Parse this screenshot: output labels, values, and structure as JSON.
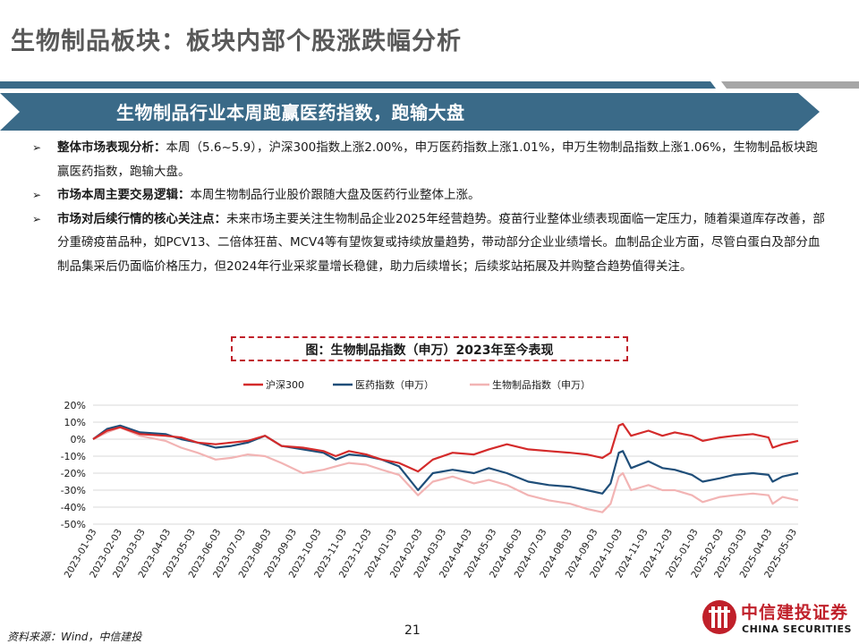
{
  "page": {
    "title": "生物制品板块：板块内部个股涨跌幅分析",
    "banner": "生物制品行业本周跑赢医药指数，跑输大盘",
    "bullets": [
      {
        "lead": "整体市场表现分析：",
        "text": "本周（5.6~5.9），沪深300指数上涨2.00%，申万医药指数上涨1.01%，申万生物制品指数上涨1.06%，生物制品板块跑赢医药指数，跑输大盘。"
      },
      {
        "lead": "市场本周主要交易逻辑：",
        "text": "本周生物制品行业股价跟随大盘及医药行业整体上涨。"
      },
      {
        "lead": "市场对后续行情的核心关注点：",
        "text": "未来市场主要关注生物制品企业2025年经营趋势。疫苗行业整体业绩表现面临一定压力，随着渠道库存改善，部分重磅疫苗品种，如PCV13、二倍体狂苗、MCV4等有望恢复或持续放量趋势，带动部分企业业绩增长。血制品企业方面，尽管白蛋白及部分血制品集采后仍面临价格压力，但2024年行业采浆量增长稳健，助力后续增长；后续浆站拓展及并购整合趋势值得关注。"
      }
    ],
    "source": "资料来源：Wind，中信建投",
    "page_number": "21",
    "logo_cn": "中信建投证券",
    "logo_en": "CHINA SECURITIES",
    "accent": "#c0202a",
    "banner_color": "#3a6a88"
  },
  "chart_data": {
    "type": "line",
    "title": "图：生物制品指数（申万）2023年至今表现",
    "legend_position": "top",
    "grid": true,
    "y_tick_labels": [
      "20%",
      "10%",
      "0%",
      "-10%",
      "-20%",
      "-30%",
      "-40%",
      "-50%"
    ],
    "ylim": [
      -50,
      20
    ],
    "x_tick_labels": [
      "2023-01-03",
      "2023-02-03",
      "2023-03-03",
      "2023-04-03",
      "2023-05-03",
      "2023-06-03",
      "2023-07-03",
      "2023-08-03",
      "2023-09-03",
      "2023-10-03",
      "2023-11-03",
      "2023-12-03",
      "2024-01-03",
      "2024-02-03",
      "2024-03-03",
      "2024-04-03",
      "2024-05-03",
      "2024-06-03",
      "2024-07-03",
      "2024-08-03",
      "2024-09-03",
      "2024-10-03",
      "2024-11-03",
      "2024-12-03",
      "2025-01-03",
      "2025-02-03",
      "2025-03-03",
      "2025-04-03",
      "2025-05-03"
    ],
    "x_range": [
      "2023-01-03",
      "2025-05-09"
    ],
    "series": [
      {
        "name": "沪深300",
        "color": "#d42b2b",
        "points": [
          [
            "2023-01-03",
            0
          ],
          [
            "2023-01-20",
            5
          ],
          [
            "2023-02-05",
            7
          ],
          [
            "2023-03-01",
            3
          ],
          [
            "2023-04-01",
            2
          ],
          [
            "2023-04-20",
            1
          ],
          [
            "2023-05-10",
            -2
          ],
          [
            "2023-06-01",
            -3
          ],
          [
            "2023-06-20",
            -2
          ],
          [
            "2023-07-10",
            -1
          ],
          [
            "2023-07-31",
            2
          ],
          [
            "2023-08-20",
            -4
          ],
          [
            "2023-09-15",
            -5
          ],
          [
            "2023-10-10",
            -7
          ],
          [
            "2023-10-25",
            -10
          ],
          [
            "2023-11-10",
            -7
          ],
          [
            "2023-12-01",
            -9
          ],
          [
            "2023-12-20",
            -12
          ],
          [
            "2024-01-10",
            -14
          ],
          [
            "2024-02-02",
            -19
          ],
          [
            "2024-02-20",
            -12
          ],
          [
            "2024-03-15",
            -8
          ],
          [
            "2024-04-10",
            -9
          ],
          [
            "2024-04-28",
            -6
          ],
          [
            "2024-05-20",
            -3
          ],
          [
            "2024-06-15",
            -6
          ],
          [
            "2024-07-10",
            -7
          ],
          [
            "2024-08-05",
            -8
          ],
          [
            "2024-08-25",
            -9
          ],
          [
            "2024-09-13",
            -11
          ],
          [
            "2024-09-23",
            -8
          ],
          [
            "2024-10-03",
            8
          ],
          [
            "2024-10-08",
            9
          ],
          [
            "2024-10-18",
            2
          ],
          [
            "2024-11-08",
            5
          ],
          [
            "2024-11-25",
            2
          ],
          [
            "2024-12-10",
            4
          ],
          [
            "2024-12-31",
            2
          ],
          [
            "2025-01-13",
            -1
          ],
          [
            "2025-02-03",
            1
          ],
          [
            "2025-02-20",
            2
          ],
          [
            "2025-03-15",
            3
          ],
          [
            "2025-04-03",
            1
          ],
          [
            "2025-04-08",
            -5
          ],
          [
            "2025-04-20",
            -3
          ],
          [
            "2025-05-09",
            -1
          ]
        ]
      },
      {
        "name": "医药指数（申万）",
        "color": "#1f4e79",
        "points": [
          [
            "2023-01-03",
            0
          ],
          [
            "2023-01-20",
            6
          ],
          [
            "2023-02-05",
            8
          ],
          [
            "2023-03-01",
            4
          ],
          [
            "2023-04-01",
            3
          ],
          [
            "2023-04-20",
            0
          ],
          [
            "2023-05-10",
            -2
          ],
          [
            "2023-06-01",
            -5
          ],
          [
            "2023-06-20",
            -4
          ],
          [
            "2023-07-10",
            -2
          ],
          [
            "2023-07-31",
            2
          ],
          [
            "2023-08-20",
            -4
          ],
          [
            "2023-09-15",
            -6
          ],
          [
            "2023-10-10",
            -8
          ],
          [
            "2023-10-25",
            -12
          ],
          [
            "2023-11-10",
            -9
          ],
          [
            "2023-12-01",
            -10
          ],
          [
            "2023-12-20",
            -12
          ],
          [
            "2024-01-10",
            -16
          ],
          [
            "2024-02-02",
            -30
          ],
          [
            "2024-02-20",
            -20
          ],
          [
            "2024-03-15",
            -18
          ],
          [
            "2024-04-10",
            -20
          ],
          [
            "2024-04-28",
            -17
          ],
          [
            "2024-05-20",
            -20
          ],
          [
            "2024-06-15",
            -25
          ],
          [
            "2024-07-10",
            -27
          ],
          [
            "2024-08-05",
            -28
          ],
          [
            "2024-08-25",
            -30
          ],
          [
            "2024-09-13",
            -32
          ],
          [
            "2024-09-23",
            -26
          ],
          [
            "2024-10-03",
            -8
          ],
          [
            "2024-10-08",
            -7
          ],
          [
            "2024-10-18",
            -17
          ],
          [
            "2024-11-08",
            -13
          ],
          [
            "2024-11-25",
            -17
          ],
          [
            "2024-12-10",
            -18
          ],
          [
            "2024-12-31",
            -21
          ],
          [
            "2025-01-13",
            -25
          ],
          [
            "2025-02-03",
            -23
          ],
          [
            "2025-02-20",
            -21
          ],
          [
            "2025-03-15",
            -20
          ],
          [
            "2025-04-03",
            -21
          ],
          [
            "2025-04-08",
            -25
          ],
          [
            "2025-04-20",
            -22
          ],
          [
            "2025-05-09",
            -20
          ]
        ]
      },
      {
        "name": "生物制品指数（申万）",
        "color": "#f2b4b4",
        "points": [
          [
            "2023-01-03",
            0
          ],
          [
            "2023-01-20",
            4
          ],
          [
            "2023-02-05",
            7
          ],
          [
            "2023-03-01",
            2
          ],
          [
            "2023-04-01",
            -1
          ],
          [
            "2023-04-20",
            -5
          ],
          [
            "2023-05-10",
            -8
          ],
          [
            "2023-06-01",
            -12
          ],
          [
            "2023-06-20",
            -11
          ],
          [
            "2023-07-10",
            -9
          ],
          [
            "2023-07-31",
            -10
          ],
          [
            "2023-08-20",
            -14
          ],
          [
            "2023-09-15",
            -20
          ],
          [
            "2023-10-10",
            -18
          ],
          [
            "2023-10-25",
            -16
          ],
          [
            "2023-11-10",
            -14
          ],
          [
            "2023-12-01",
            -15
          ],
          [
            "2023-12-20",
            -18
          ],
          [
            "2024-01-10",
            -21
          ],
          [
            "2024-02-02",
            -33
          ],
          [
            "2024-02-20",
            -25
          ],
          [
            "2024-03-15",
            -22
          ],
          [
            "2024-04-10",
            -26
          ],
          [
            "2024-04-28",
            -24
          ],
          [
            "2024-05-20",
            -27
          ],
          [
            "2024-06-15",
            -33
          ],
          [
            "2024-07-10",
            -36
          ],
          [
            "2024-08-05",
            -38
          ],
          [
            "2024-08-25",
            -41
          ],
          [
            "2024-09-13",
            -43
          ],
          [
            "2024-09-23",
            -38
          ],
          [
            "2024-10-03",
            -22
          ],
          [
            "2024-10-08",
            -20
          ],
          [
            "2024-10-18",
            -30
          ],
          [
            "2024-11-08",
            -27
          ],
          [
            "2024-11-25",
            -30
          ],
          [
            "2024-12-10",
            -30
          ],
          [
            "2024-12-31",
            -33
          ],
          [
            "2025-01-13",
            -37
          ],
          [
            "2025-02-03",
            -34
          ],
          [
            "2025-02-20",
            -33
          ],
          [
            "2025-03-15",
            -32
          ],
          [
            "2025-04-03",
            -33
          ],
          [
            "2025-04-08",
            -38
          ],
          [
            "2025-04-20",
            -34
          ],
          [
            "2025-05-09",
            -36
          ]
        ]
      }
    ]
  }
}
